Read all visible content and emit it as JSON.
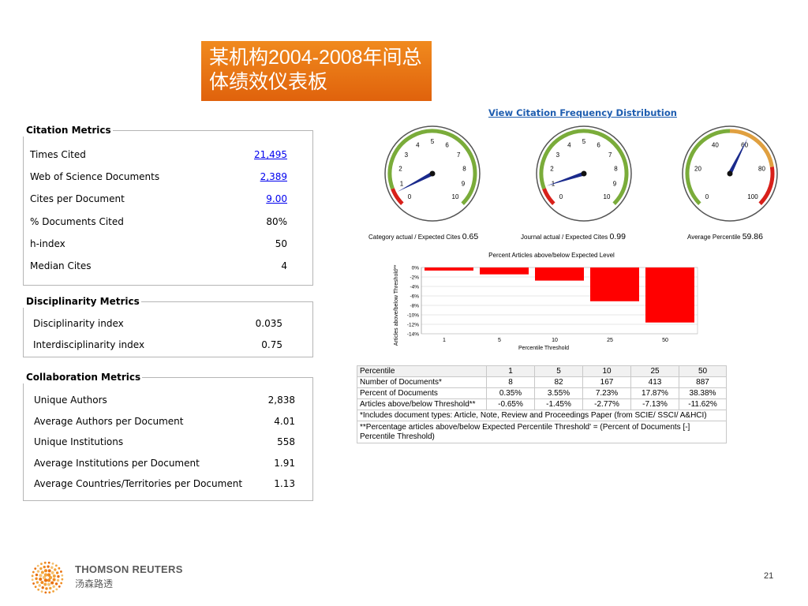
{
  "title": "某机构2004-2008年间总体绩效仪表板",
  "citation_metrics": {
    "legend": "Citation Metrics",
    "rows": [
      {
        "label": "Times Cited",
        "value": "21,495",
        "link": true
      },
      {
        "label": "Web of Science Documents",
        "value": "2,389",
        "link": true
      },
      {
        "label": "Cites per Document",
        "value": "9.00",
        "link": true
      },
      {
        "label": "% Documents Cited",
        "value": "80%",
        "link": false
      },
      {
        "label": "h-index",
        "value": "50",
        "link": false
      },
      {
        "label": "Median Cites",
        "value": "4",
        "link": false
      }
    ]
  },
  "disciplinarity_metrics": {
    "legend": "Disciplinarity Metrics",
    "rows": [
      {
        "label": "Disciplinarity index",
        "value": "0.035"
      },
      {
        "label": "Interdisciplinarity index",
        "value": "0.75"
      }
    ]
  },
  "collaboration_metrics": {
    "legend": "Collaboration Metrics",
    "rows": [
      {
        "label": "Unique Authors",
        "value": "2,838"
      },
      {
        "label": "Average Authors per Document",
        "value": "4.01"
      },
      {
        "label": "Unique Institutions",
        "value": "558"
      },
      {
        "label": "Average Institutions per Document",
        "value": "1.91"
      },
      {
        "label": "Average Countries/Territories per Document",
        "value": "1.13"
      }
    ]
  },
  "view_link": "View Citation Frequency Distribution",
  "gauges": [
    {
      "caption": "Category actual / Expected Cites",
      "value_text": "0.65",
      "value": 0.65,
      "ticks": [
        "0",
        "1",
        "2",
        "3",
        "4",
        "5",
        "6",
        "7",
        "8",
        "9",
        "10"
      ],
      "min": 0,
      "max": 10
    },
    {
      "caption": "Journal actual / Expected Cites",
      "value_text": "0.99",
      "value": 0.99,
      "ticks": [
        "0",
        "1",
        "2",
        "3",
        "4",
        "5",
        "6",
        "7",
        "8",
        "9",
        "10"
      ],
      "min": 0,
      "max": 10
    },
    {
      "caption": "Average Percentile",
      "value_text": "59.86",
      "value": 59.86,
      "ticks": [
        "0",
        "20",
        "40",
        "60",
        "80",
        "100"
      ],
      "min": 0,
      "max": 100
    }
  ],
  "chart_data": {
    "type": "bar",
    "title": "Percent Articles above/below Expected Level",
    "xlabel": "Percentile Threshold",
    "ylabel": "Articles above/below Threshold**",
    "categories": [
      "1",
      "5",
      "10",
      "25",
      "50"
    ],
    "values": [
      -0.65,
      -1.45,
      -2.77,
      -7.13,
      -11.62
    ],
    "ylim": [
      -14,
      0
    ],
    "yticks": [
      "0%",
      "-2%",
      "-4%",
      "-6%",
      "-8%",
      "-10%",
      "-12%",
      "-14%"
    ],
    "bar_color": "#ff0000",
    "grid": true
  },
  "table": {
    "header": [
      "Percentile",
      "1",
      "5",
      "10",
      "25",
      "50"
    ],
    "rows": [
      [
        "Number of Documents*",
        "8",
        "82",
        "167",
        "413",
        "887"
      ],
      [
        "Percent of Documents",
        "0.35%",
        "3.55%",
        "7.23%",
        "17.87%",
        "38.38%"
      ],
      [
        "Articles above/below Threshold**",
        "-0.65%",
        "-1.45%",
        "-2.77%",
        "-7.13%",
        "-11.62%"
      ]
    ],
    "note1": "*Includes document types: Article, Note, Review and Proceedings Paper (from SCIE/ SSCI/ A&HCI)",
    "note2": "**Percentage articles  above/below Expected Percentile Threshold' = (Percent of Documents [-] Percentile Threshold)"
  },
  "brand": {
    "name_en": "THOMSON REUTERS",
    "name_cn": "汤森路透"
  },
  "page_number": "21",
  "colors": {
    "accent_orange": "#e8700f",
    "gauge_green": "#7aac3a",
    "gauge_red": "#d8201a",
    "gauge_orange": "#e0a040",
    "needle": "#1a2a8c",
    "link": "#1f5eb0"
  }
}
